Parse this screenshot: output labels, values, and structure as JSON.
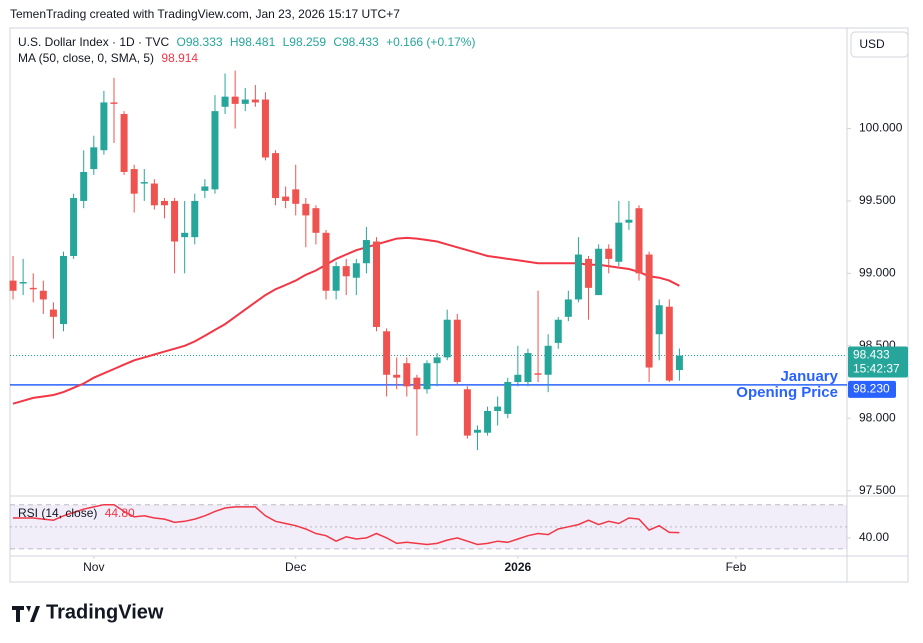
{
  "header": {
    "watermark": "TemenTrading created with TradingView.com, Jan 23, 2026 15:17 UTC+7",
    "currency_button": "USD",
    "logo": "TradingView"
  },
  "chart_data": {
    "type": "candlestick",
    "legend": {
      "symbol": "U.S. Dollar Index · 1D · TVC",
      "ohlc": [
        "O98.333",
        "H98.481",
        "L98.259",
        "C98.433"
      ],
      "change": "+0.166 (+0.17%)"
    },
    "open": [
      98.95,
      98.93,
      98.9,
      98.88,
      98.75,
      98.65,
      99.12,
      99.5,
      99.72,
      99.85,
      100.18,
      100.1,
      99.72,
      99.62,
      99.62,
      99.5,
      99.5,
      99.25,
      99.25,
      99.57,
      99.58,
      100.15,
      100.22,
      100.17,
      100.2,
      100.2,
      99.83,
      99.53,
      99.58,
      99.48,
      99.45,
      99.28,
      98.88,
      99.05,
      98.97,
      99.07,
      99.22,
      98.6,
      98.3,
      98.38,
      98.28,
      98.2,
      98.38,
      98.42,
      98.68,
      98.2,
      97.9,
      97.9,
      98.05,
      98.03,
      98.25,
      98.25,
      98.31,
      98.3,
      98.52,
      98.7,
      98.82,
      99.1,
      98.85,
      99.17,
      99.08,
      99.35,
      99.45,
      99.13,
      98.58,
      98.77,
      98.333
    ],
    "high": [
      99.12,
      99.1,
      99.0,
      98.95,
      98.8,
      99.15,
      99.55,
      99.85,
      99.95,
      100.26,
      100.35,
      100.12,
      99.75,
      99.72,
      99.65,
      99.52,
      99.52,
      99.5,
      99.55,
      99.65,
      100.23,
      100.38,
      100.4,
      100.28,
      100.3,
      100.25,
      99.85,
      99.6,
      99.75,
      99.52,
      99.47,
      99.3,
      99.08,
      99.1,
      99.1,
      99.32,
      99.25,
      98.62,
      98.42,
      98.42,
      98.3,
      98.4,
      98.45,
      98.75,
      98.72,
      98.22,
      97.95,
      98.08,
      98.15,
      98.28,
      98.5,
      98.48,
      98.88,
      98.58,
      98.7,
      98.88,
      99.25,
      99.12,
      99.2,
      99.2,
      99.5,
      99.5,
      99.47,
      99.15,
      98.82,
      98.82,
      98.481
    ],
    "low": [
      98.82,
      98.85,
      98.8,
      98.72,
      98.55,
      98.6,
      99.1,
      99.45,
      99.68,
      99.82,
      99.9,
      99.68,
      99.42,
      99.5,
      99.44,
      99.38,
      99.0,
      99.0,
      99.2,
      99.52,
      99.55,
      100.1,
      100.0,
      100.12,
      100.15,
      99.78,
      99.47,
      99.45,
      99.4,
      99.18,
      99.2,
      98.82,
      98.82,
      98.85,
      98.85,
      99.0,
      98.6,
      98.15,
      98.2,
      98.15,
      97.88,
      98.17,
      98.22,
      98.4,
      98.23,
      97.86,
      97.78,
      97.88,
      97.95,
      98.0,
      98.22,
      98.22,
      98.25,
      98.18,
      98.48,
      98.67,
      98.8,
      98.68,
      98.85,
      99.0,
      99.05,
      99.3,
      98.95,
      98.25,
      98.4,
      98.25,
      98.259
    ],
    "close": [
      98.88,
      98.94,
      98.89,
      98.82,
      98.7,
      99.12,
      99.52,
      99.7,
      99.87,
      100.18,
      100.17,
      99.7,
      99.55,
      99.63,
      99.47,
      99.47,
      99.22,
      99.28,
      99.5,
      99.6,
      100.12,
      100.22,
      100.17,
      100.2,
      100.18,
      99.8,
      99.52,
      99.5,
      99.48,
      99.4,
      99.28,
      98.88,
      99.05,
      98.98,
      99.07,
      99.23,
      98.63,
      98.3,
      98.28,
      98.22,
      98.2,
      98.38,
      98.42,
      98.68,
      98.25,
      97.88,
      97.92,
      98.05,
      98.08,
      98.25,
      98.3,
      98.45,
      98.3,
      98.5,
      98.68,
      98.82,
      99.13,
      98.9,
      99.17,
      99.1,
      99.35,
      99.37,
      99.0,
      98.35,
      98.78,
      98.26,
      98.433
    ],
    "up_color": "#26a69a",
    "down_color": "#ef5350",
    "ylim": [
      97.47,
      100.68
    ],
    "yticks": [
      {
        "value": 97.5,
        "label": "97.500"
      },
      {
        "value": 98,
        "label": "98.000"
      },
      {
        "value": 98.5,
        "label": "98.500"
      },
      {
        "value": 99,
        "label": "99.000"
      },
      {
        "value": 99.5,
        "label": "99.500"
      },
      {
        "value": 100,
        "label": "100.000"
      }
    ],
    "xlim": [
      -0.3,
      82.6
    ],
    "xticks": [
      {
        "value": 8,
        "label": "Nov"
      },
      {
        "value": 28,
        "label": "Dec"
      },
      {
        "value": 50,
        "label": "2026"
      },
      {
        "value": 71.6,
        "label": "Feb"
      }
    ],
    "ma": {
      "name": "MA (50, close, 0, SMA, 5)",
      "value_label": "98.914",
      "color": "#f23645",
      "values": [
        98.1,
        98.12,
        98.14,
        98.15,
        98.16,
        98.18,
        98.21,
        98.24,
        98.28,
        98.31,
        98.34,
        98.37,
        98.4,
        98.42,
        98.44,
        98.46,
        98.48,
        98.5,
        98.53,
        98.57,
        98.61,
        98.65,
        98.7,
        98.75,
        98.8,
        98.85,
        98.89,
        98.92,
        98.95,
        98.99,
        99.02,
        99.06,
        99.1,
        99.13,
        99.16,
        99.18,
        99.2,
        99.22,
        99.24,
        99.245,
        99.24,
        99.23,
        99.22,
        99.2,
        99.18,
        99.16,
        99.14,
        99.12,
        99.11,
        99.1,
        99.09,
        99.08,
        99.07,
        99.07,
        99.07,
        99.07,
        99.07,
        99.06,
        99.06,
        99.05,
        99.04,
        99.03,
        99.01,
        98.98,
        98.97,
        98.95,
        98.914
      ]
    },
    "last_price": {
      "label": "98.433",
      "countdown": "15:42:37",
      "color": "#26a69a"
    },
    "hline": {
      "value": 98.23,
      "label": "98.230",
      "color": "#2962ff",
      "text": [
        "January",
        "Opening Price"
      ]
    },
    "rsi": {
      "name": "RSI (14, close)",
      "value_label": "44.80",
      "color": "#f23645",
      "ylim": [
        24.5,
        77
      ],
      "yticks": [
        {
          "value": 40,
          "label": "40.00"
        }
      ],
      "bands": [
        30,
        50,
        70
      ],
      "values": [
        58,
        58,
        58,
        57,
        56,
        60,
        63,
        66,
        68,
        70,
        70,
        64,
        59,
        60,
        58,
        57,
        54,
        55,
        57,
        60,
        64,
        67,
        68,
        68,
        68,
        60,
        55,
        53,
        51,
        48,
        44,
        42,
        37,
        41,
        39,
        40,
        44,
        40,
        35,
        36,
        35,
        34,
        35,
        38,
        40,
        37,
        34,
        35,
        37,
        36,
        39,
        42,
        44,
        43,
        48,
        50,
        52,
        56,
        52,
        55,
        53,
        58,
        57,
        47,
        51,
        45,
        44.8
      ]
    }
  }
}
